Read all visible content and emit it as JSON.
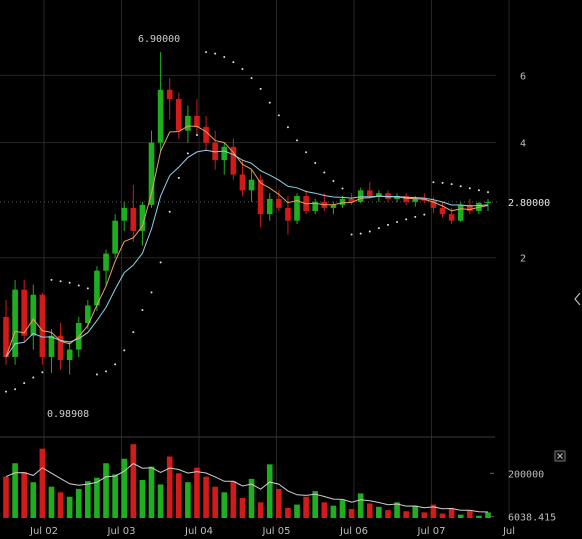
{
  "chart_data": {
    "type": "candlestick",
    "price_axis": {
      "scale": "log",
      "ticks": [
        "2",
        "4",
        "6"
      ],
      "range": [
        0.7,
        9.0
      ]
    },
    "time_axis": {
      "labels": [
        "Jul 02",
        "Jul 03",
        "Jul 04",
        "Jul 05",
        "Jul 06",
        "Jul 07",
        "Jul"
      ]
    },
    "annotations": {
      "high": "6.90000",
      "low": "0.98908"
    },
    "last_price": "2.80000",
    "volume_axis": {
      "ticks": [
        "200000",
        "6038.415"
      ],
      "max": 340000
    },
    "colors": {
      "up": "#1fae1f",
      "down": "#d11a1a",
      "ema_fast": "#e8a25a",
      "ema_slow": "#8fd3e8",
      "sar": "#e0e0e0",
      "volume_ma": "#cfcfcf",
      "grid": "#262626"
    },
    "close_icon": "close-icon",
    "resize_icon": "chevron-left-icon",
    "candles_ohlc": [
      [
        1.4,
        1.55,
        1.05,
        1.1
      ],
      [
        1.1,
        1.75,
        1.05,
        1.65
      ],
      [
        1.65,
        1.75,
        1.2,
        1.25
      ],
      [
        1.25,
        1.7,
        1.15,
        1.6
      ],
      [
        1.6,
        1.62,
        1.05,
        1.1
      ],
      [
        1.1,
        1.3,
        1.0,
        1.25
      ],
      [
        1.25,
        1.35,
        1.02,
        1.08
      ],
      [
        1.08,
        1.2,
        0.99,
        1.15
      ],
      [
        1.15,
        1.4,
        1.1,
        1.35
      ],
      [
        1.35,
        1.55,
        1.3,
        1.5
      ],
      [
        1.5,
        1.9,
        1.45,
        1.85
      ],
      [
        1.85,
        2.1,
        1.7,
        2.05
      ],
      [
        2.05,
        2.6,
        2.0,
        2.5
      ],
      [
        2.5,
        2.8,
        2.35,
        2.7
      ],
      [
        2.7,
        3.1,
        2.2,
        2.35
      ],
      [
        2.35,
        2.8,
        2.15,
        2.75
      ],
      [
        2.75,
        4.3,
        2.7,
        4.0
      ],
      [
        4.0,
        6.9,
        3.8,
        5.5
      ],
      [
        5.5,
        5.9,
        4.6,
        5.2
      ],
      [
        5.2,
        5.4,
        4.1,
        4.3
      ],
      [
        4.3,
        5.0,
        4.0,
        4.7
      ],
      [
        4.7,
        5.2,
        4.2,
        4.4
      ],
      [
        4.4,
        4.7,
        3.8,
        4.0
      ],
      [
        4.0,
        4.3,
        3.4,
        3.6
      ],
      [
        3.6,
        4.0,
        3.3,
        3.9
      ],
      [
        3.9,
        4.1,
        3.2,
        3.3
      ],
      [
        3.3,
        3.6,
        2.9,
        3.0
      ],
      [
        3.0,
        3.4,
        2.8,
        3.2
      ],
      [
        3.2,
        3.3,
        2.4,
        2.6
      ],
      [
        2.6,
        2.95,
        2.5,
        2.85
      ],
      [
        2.85,
        3.0,
        2.65,
        2.7
      ],
      [
        2.7,
        2.9,
        2.3,
        2.5
      ],
      [
        2.5,
        2.95,
        2.45,
        2.9
      ],
      [
        2.9,
        3.0,
        2.6,
        2.65
      ],
      [
        2.65,
        2.85,
        2.6,
        2.8
      ],
      [
        2.8,
        2.95,
        2.65,
        2.7
      ],
      [
        2.7,
        2.8,
        2.6,
        2.75
      ],
      [
        2.75,
        2.9,
        2.7,
        2.85
      ],
      [
        2.85,
        2.95,
        2.75,
        2.8
      ],
      [
        2.8,
        3.05,
        2.78,
        3.0
      ],
      [
        3.0,
        3.15,
        2.85,
        2.9
      ],
      [
        2.9,
        3.0,
        2.8,
        2.95
      ],
      [
        2.95,
        3.0,
        2.8,
        2.85
      ],
      [
        2.85,
        2.95,
        2.8,
        2.9
      ],
      [
        2.9,
        2.95,
        2.75,
        2.8
      ],
      [
        2.8,
        2.9,
        2.72,
        2.85
      ],
      [
        2.85,
        2.95,
        2.78,
        2.82
      ],
      [
        2.82,
        2.88,
        2.62,
        2.7
      ],
      [
        2.7,
        2.8,
        2.55,
        2.6
      ],
      [
        2.6,
        2.7,
        2.45,
        2.5
      ],
      [
        2.5,
        2.8,
        2.48,
        2.75
      ],
      [
        2.75,
        2.85,
        2.6,
        2.65
      ],
      [
        2.65,
        2.8,
        2.6,
        2.78
      ],
      [
        2.78,
        2.85,
        2.65,
        2.8
      ]
    ],
    "volumes": [
      185000,
      245000,
      205000,
      160000,
      310000,
      140000,
      115000,
      95000,
      130000,
      165000,
      180000,
      245000,
      195000,
      265000,
      330000,
      170000,
      230000,
      150000,
      275000,
      200000,
      160000,
      225000,
      185000,
      140000,
      115000,
      165000,
      90000,
      175000,
      70000,
      240000,
      130000,
      45000,
      60000,
      95000,
      120000,
      70000,
      55000,
      80000,
      40000,
      110000,
      65000,
      50000,
      35000,
      70000,
      30000,
      55000,
      25000,
      60000,
      20000,
      45000,
      15000,
      35000,
      10000,
      25000
    ]
  }
}
